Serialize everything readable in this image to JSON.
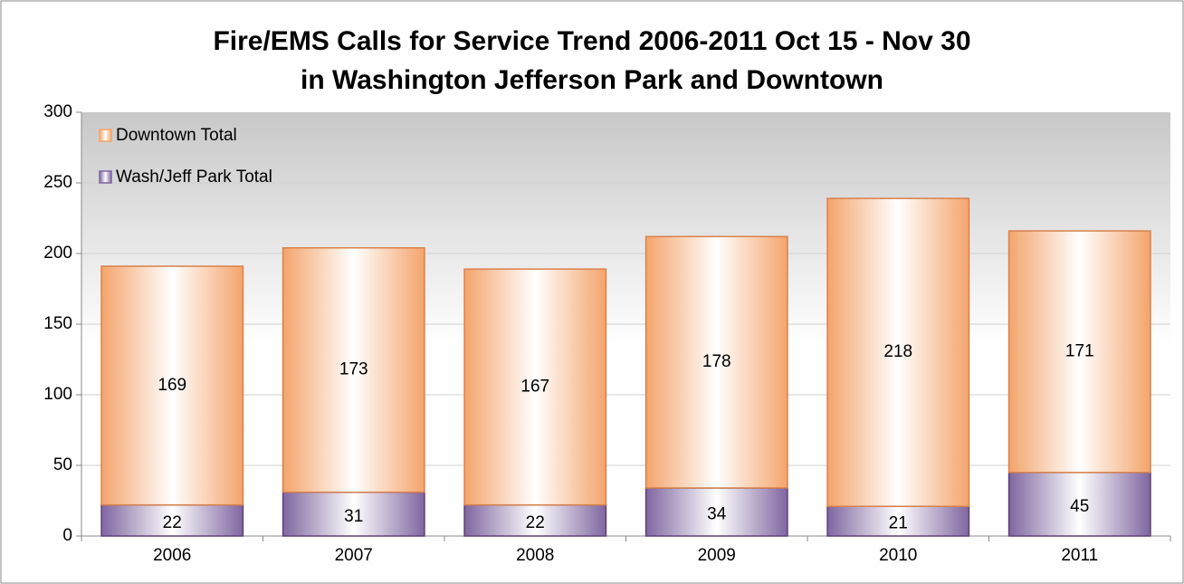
{
  "chart_data": {
    "type": "stacked_bar",
    "title": [
      "Fire/EMS Calls for Service Trend 2006-2011 Oct 15 - Nov 30",
      "in Washington Jefferson Park and Downtown"
    ],
    "categories": [
      "2006",
      "2007",
      "2008",
      "2009",
      "2010",
      "2011"
    ],
    "series": [
      {
        "name": "Wash/Jeff Park Total",
        "color": "#7f66a0",
        "values": [
          22,
          31,
          22,
          34,
          21,
          45
        ]
      },
      {
        "name": "Downtown Total",
        "color": "#f4a46c",
        "values": [
          169,
          173,
          167,
          178,
          218,
          171
        ]
      }
    ],
    "ylim": [
      0,
      300
    ],
    "yticks": [
      0,
      50,
      100,
      150,
      200,
      250,
      300
    ],
    "grid": true,
    "legend": "upper left"
  }
}
